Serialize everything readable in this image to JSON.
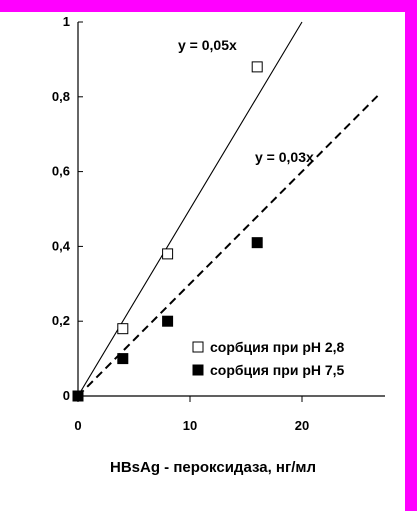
{
  "colors": {
    "frame": "#ff00ff",
    "background": "#ffffff",
    "ink": "#000000"
  },
  "chart_data": {
    "type": "scatter",
    "title": "",
    "xlabel": "HBsAg - пероксидаза, нг/мл",
    "ylabel": "",
    "xlim": [
      0,
      27
    ],
    "ylim": [
      0,
      1
    ],
    "xticks": [
      0,
      10,
      20
    ],
    "xtick_labels": [
      "0",
      "10",
      "20"
    ],
    "yticks": [
      0,
      0.2,
      0.4,
      0.6,
      0.8,
      1
    ],
    "ytick_labels": [
      "0",
      "0,2",
      "0,4",
      "0,6",
      "0,8",
      "1"
    ],
    "grid": false,
    "legend_position": "bottom-right",
    "series": [
      {
        "name": "сорбция при pH 2,8",
        "marker": "open-square",
        "x": [
          0,
          4,
          8,
          16
        ],
        "y": [
          0,
          0.18,
          0.38,
          0.88
        ],
        "fit": {
          "slope": 0.05,
          "style": "solid",
          "label": "y = 0,05x"
        }
      },
      {
        "name": "сорбция при pH 7,5",
        "marker": "filled-square",
        "x": [
          0,
          4,
          8,
          16
        ],
        "y": [
          0,
          0.1,
          0.2,
          0.41
        ],
        "fit": {
          "slope": 0.03,
          "style": "dashed",
          "label": "y = 0,03x"
        }
      }
    ]
  }
}
